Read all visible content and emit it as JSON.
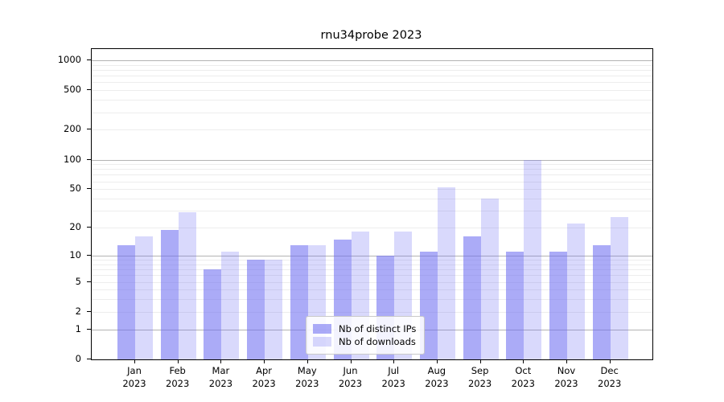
{
  "title": "rnu34probe 2023",
  "chart_data": {
    "type": "bar",
    "title": "rnu34probe 2023",
    "categories": [
      "Jan 2023",
      "Feb 2023",
      "Mar 2023",
      "Apr 2023",
      "May 2023",
      "Jun 2023",
      "Jul 2023",
      "Aug 2023",
      "Sep 2023",
      "Oct 2023",
      "Nov 2023",
      "Dec 2023"
    ],
    "series": [
      {
        "name": "Nb of distinct IPs",
        "color": "rgba(110,110,242,0.58)",
        "values": [
          13,
          19,
          7,
          9,
          13,
          15,
          10,
          11,
          16,
          11,
          11,
          13
        ]
      },
      {
        "name": "Nb of downloads",
        "color": "rgba(110,110,242,0.26)",
        "values": [
          16,
          29,
          11,
          9,
          13,
          18,
          18,
          52,
          40,
          100,
          22,
          26
        ]
      }
    ],
    "y_axis": {
      "scale": "log10(value+1)",
      "tick_labels": [
        0,
        1,
        2,
        5,
        10,
        20,
        50,
        100,
        200,
        500,
        1000
      ],
      "major_gridlines": [
        1,
        10,
        100,
        1000
      ],
      "minor_gridlines": [
        2,
        3,
        4,
        5,
        6,
        7,
        8,
        9,
        20,
        30,
        40,
        50,
        60,
        70,
        80,
        90,
        200,
        300,
        400,
        500,
        600,
        700,
        800,
        900
      ],
      "ylim": [
        0,
        1300
      ],
      "grid": "on"
    },
    "legend_position": "lower center",
    "colors": {
      "bar_base": "#6e6ef2",
      "axis": "#000000",
      "major_grid": "#b3b3b3",
      "minor_grid": "#ededed",
      "background": "#ffffff"
    }
  }
}
